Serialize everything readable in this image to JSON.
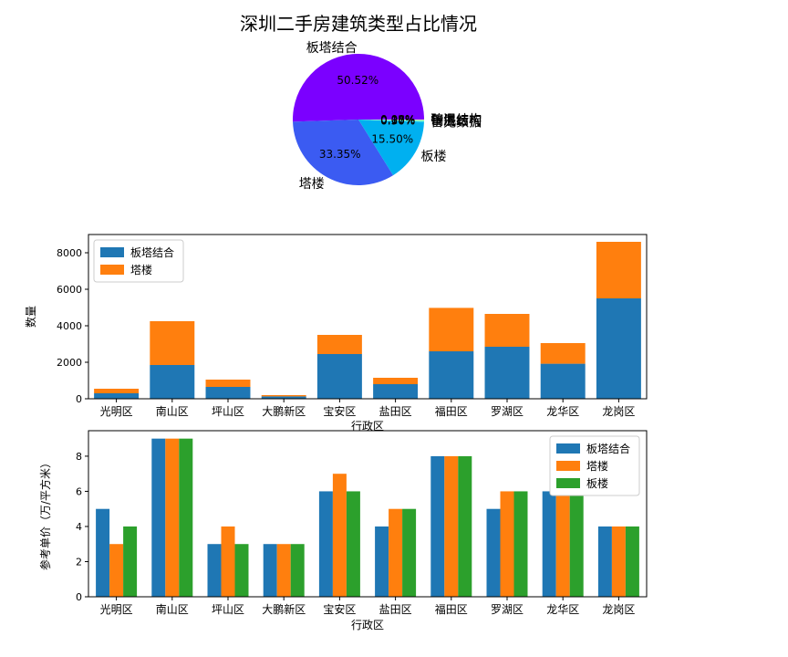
{
  "chart_data": [
    {
      "type": "pie",
      "title": "深圳二手房建筑类型占比情况",
      "slices": [
        {
          "label": "板塔结合",
          "value": 50.52,
          "pct_label": "50.52%",
          "color": "#7b00ff"
        },
        {
          "label": "塔楼",
          "value": 33.35,
          "pct_label": "33.35%",
          "color": "#3b5bf2"
        },
        {
          "label": "板楼",
          "value": 15.5,
          "pct_label": "15.50%",
          "color": "#00b0f0"
        },
        {
          "label": "暂无数据",
          "value": 0.3,
          "pct_label": "0.30%",
          "color": "#33dde0"
        },
        {
          "label": "钢混结构",
          "value": 0.17,
          "pct_label": "0.17%",
          "color": "#7ef2c0"
        },
        {
          "label": "平房",
          "value": 0.08,
          "pct_label": "0.08%",
          "color": "#c8f5a0"
        },
        {
          "label": "砖混结构",
          "value": 0.08,
          "pct_label": "0.08%",
          "color": "#ffd870"
        }
      ]
    },
    {
      "type": "bar",
      "stacked": true,
      "categories": [
        "光明区",
        "南山区",
        "坪山区",
        "大鹏新区",
        "宝安区",
        "盐田区",
        "福田区",
        "罗湖区",
        "龙华区",
        "龙岗区"
      ],
      "series": [
        {
          "name": "板塔结合",
          "color": "#1f77b4",
          "values": [
            300,
            1850,
            650,
            130,
            2450,
            800,
            2600,
            2850,
            1920,
            5500
          ]
        },
        {
          "name": "塔楼",
          "color": "#ff7f0e",
          "values": [
            250,
            2400,
            400,
            70,
            1050,
            350,
            2380,
            1800,
            1130,
            3100
          ]
        }
      ],
      "xlabel": "行政区",
      "ylabel": "数量",
      "ylim": [
        0,
        9000
      ],
      "yticks": [
        0,
        2000,
        4000,
        6000,
        8000
      ],
      "legend": "top-left"
    },
    {
      "type": "bar",
      "grouped": true,
      "categories": [
        "光明区",
        "南山区",
        "坪山区",
        "大鹏新区",
        "宝安区",
        "盐田区",
        "福田区",
        "罗湖区",
        "龙华区",
        "龙岗区"
      ],
      "series": [
        {
          "name": "板塔结合",
          "color": "#1f77b4",
          "values": [
            5,
            9,
            3,
            3,
            6,
            4,
            8,
            5,
            6,
            4
          ]
        },
        {
          "name": "塔楼",
          "color": "#ff7f0e",
          "values": [
            3,
            9,
            4,
            3,
            7,
            5,
            8,
            6,
            6,
            4
          ]
        },
        {
          "name": "板楼",
          "color": "#2ca02c",
          "values": [
            4,
            9,
            3,
            3,
            6,
            5,
            8,
            6,
            6,
            4
          ]
        }
      ],
      "xlabel": "行政区",
      "ylabel": "参考单价（万/平方米）",
      "ylim": [
        0,
        9.45
      ],
      "yticks": [
        0,
        2,
        4,
        6,
        8
      ],
      "legend": "top-right"
    }
  ]
}
